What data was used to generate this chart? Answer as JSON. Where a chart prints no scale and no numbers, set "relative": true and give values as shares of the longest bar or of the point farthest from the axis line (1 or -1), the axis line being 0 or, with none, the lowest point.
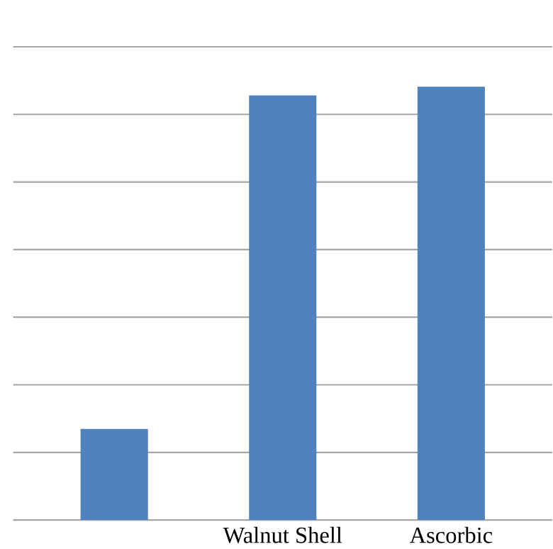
{
  "chart_data": {
    "type": "bar",
    "relative": true,
    "grid": "y",
    "color": "#4f81bd",
    "categories": [
      null,
      "Walnut Shell",
      "Ascorbic"
    ],
    "values": [
      0.21,
      0.98,
      1
    ]
  }
}
